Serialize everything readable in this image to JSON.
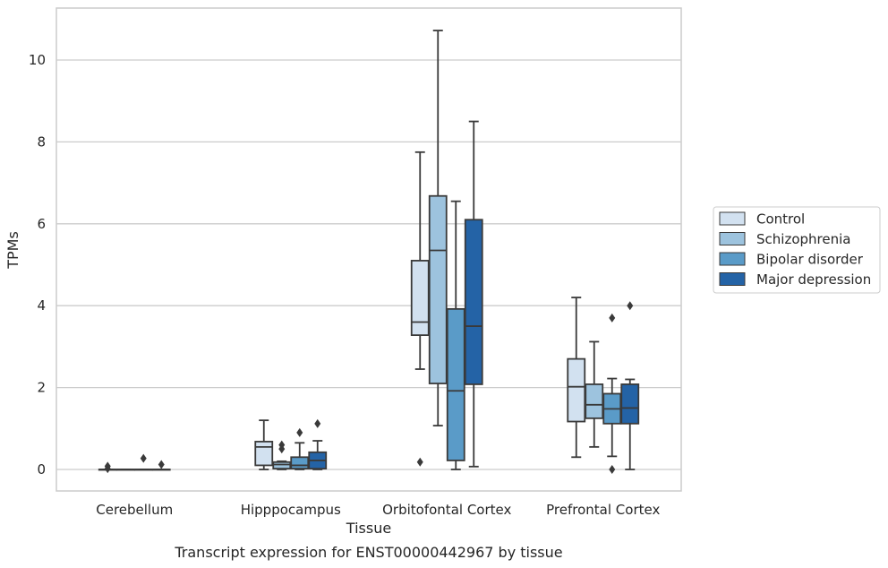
{
  "chart_data": {
    "type": "box",
    "caption": "Transcript expression for ENST00000442967 by tissue",
    "xlabel": "Tissue",
    "ylabel": "TPMs",
    "ylim": [
      -0.5,
      11.3
    ],
    "yticks": [
      0,
      2,
      4,
      6,
      8,
      10
    ],
    "grid": "horizontal",
    "legend_position": "right",
    "categories": [
      "Cerebellum",
      "Hipppocampus",
      "Orbitofontal Cortex",
      "Prefrontal Cortex"
    ],
    "series": [
      {
        "name": "Control",
        "color": "#d2e1f0",
        "boxes": [
          {
            "whislo": 0,
            "q1": 0,
            "med": 0,
            "q3": 0,
            "whishi": 0,
            "fliers": [
              0.08,
              0.02
            ]
          },
          {
            "whislo": 0,
            "q1": 0.1,
            "med": 0.55,
            "q3": 0.68,
            "whishi": 1.2,
            "fliers": []
          },
          {
            "whislo": 2.45,
            "q1": 3.28,
            "med": 3.6,
            "q3": 5.1,
            "whishi": 7.75,
            "fliers": [
              0.18
            ]
          },
          {
            "whislo": 0.3,
            "q1": 1.17,
            "med": 2.02,
            "q3": 2.7,
            "whishi": 4.2,
            "fliers": []
          }
        ]
      },
      {
        "name": "Schizophrenia",
        "color": "#9dc3de",
        "boxes": [
          {
            "whislo": 0,
            "q1": 0,
            "med": 0,
            "q3": 0,
            "whishi": 0,
            "fliers": []
          },
          {
            "whislo": 0,
            "q1": 0.02,
            "med": 0.12,
            "q3": 0.18,
            "whishi": 0.2,
            "fliers": [
              0.6,
              0.5
            ]
          },
          {
            "whislo": 1.07,
            "q1": 2.1,
            "med": 5.35,
            "q3": 6.68,
            "whishi": 10.72,
            "fliers": []
          },
          {
            "whislo": 0.55,
            "q1": 1.25,
            "med": 1.58,
            "q3": 2.08,
            "whishi": 3.12,
            "fliers": []
          }
        ]
      },
      {
        "name": "Bipolar disorder",
        "color": "#5a9bc8",
        "boxes": [
          {
            "whislo": 0,
            "q1": 0,
            "med": 0,
            "q3": 0,
            "whishi": 0,
            "fliers": [
              0.27
            ]
          },
          {
            "whislo": 0,
            "q1": 0.02,
            "med": 0.1,
            "q3": 0.3,
            "whishi": 0.65,
            "fliers": [
              0.9
            ]
          },
          {
            "whislo": 0,
            "q1": 0.22,
            "med": 1.92,
            "q3": 3.92,
            "whishi": 6.55,
            "fliers": []
          },
          {
            "whislo": 0.32,
            "q1": 1.12,
            "med": 1.48,
            "q3": 1.85,
            "whishi": 2.22,
            "fliers": [
              3.7,
              0.0
            ]
          }
        ]
      },
      {
        "name": "Major depression",
        "color": "#2463a6",
        "boxes": [
          {
            "whislo": 0,
            "q1": 0,
            "med": 0,
            "q3": 0,
            "whishi": 0,
            "fliers": [
              0.12
            ]
          },
          {
            "whislo": 0,
            "q1": 0.02,
            "med": 0.22,
            "q3": 0.42,
            "whishi": 0.7,
            "fliers": [
              1.12
            ]
          },
          {
            "whislo": 0.07,
            "q1": 2.08,
            "med": 3.5,
            "q3": 6.1,
            "whishi": 8.5,
            "fliers": []
          },
          {
            "whislo": 0.0,
            "q1": 1.12,
            "med": 1.5,
            "q3": 2.08,
            "whishi": 2.2,
            "fliers": [
              4.0
            ]
          }
        ]
      }
    ]
  }
}
